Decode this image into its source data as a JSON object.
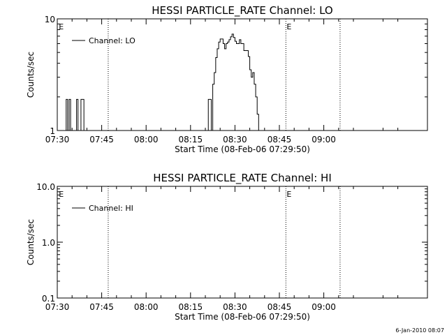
{
  "footer": {
    "timestamp": "6-Jan-2010 08:07"
  },
  "chart_data": [
    {
      "type": "line",
      "title": "HESSI PARTICLE_RATE Channel: LO",
      "xlabel": "Start Time (08-Feb-06 07:29:50)",
      "ylabel": "Counts/sec",
      "x_unit": "minutes after 07:30",
      "xlim": [
        0,
        125
      ],
      "x_ticks": [
        {
          "v": 0,
          "label": "07:30"
        },
        {
          "v": 15,
          "label": "07:45"
        },
        {
          "v": 30,
          "label": "08:00"
        },
        {
          "v": 45,
          "label": "08:15"
        },
        {
          "v": 60,
          "label": "08:30"
        },
        {
          "v": 75,
          "label": "08:45"
        },
        {
          "v": 90,
          "label": "09:00"
        }
      ],
      "y_scale": "log",
      "ylim": [
        1,
        10
      ],
      "y_ticks": [
        {
          "v": 1,
          "label": "1"
        },
        {
          "v": 10,
          "label": "10"
        }
      ],
      "legend": {
        "position": "top-left",
        "label": "Channel: LO"
      },
      "markers": [
        {
          "x": 0.3,
          "label": "E",
          "line": false
        },
        {
          "x": 17.2,
          "label": "",
          "line": true
        },
        {
          "x": 77.2,
          "label": "E",
          "line": true
        },
        {
          "x": 95.5,
          "label": "",
          "line": true
        }
      ],
      "series": [
        {
          "x": [
            2.5,
            3.0,
            3.5,
            4.0,
            4.5,
            5.0,
            5.5,
            6.0,
            6.5,
            7.0,
            7.5,
            8.0,
            8.5,
            9.0,
            9.5,
            10.0,
            50.0,
            50.5,
            51.0,
            51.5,
            52.0,
            52.5,
            53.0,
            53.5,
            54.0,
            54.5,
            55.0,
            55.5,
            56.0,
            56.5,
            57.0,
            57.5,
            58.0,
            58.5,
            59.0,
            59.5,
            60.0,
            60.5,
            61.0,
            61.5,
            62.0,
            62.5,
            63.0,
            63.5,
            64.0,
            64.5,
            65.0,
            65.5,
            66.0,
            66.5,
            67.0,
            67.5,
            68.0,
            68.5
          ],
          "y": [
            1,
            1.9,
            1,
            1.9,
            1,
            1,
            1,
            1,
            1.9,
            1,
            1,
            1.9,
            1.9,
            1,
            1,
            1,
            1,
            1,
            1.9,
            1.9,
            1,
            2.6,
            3.3,
            4.5,
            5.4,
            6.2,
            6.6,
            6.6,
            6.0,
            5.4,
            6.0,
            6.2,
            6.5,
            6.9,
            7.3,
            6.8,
            6.3,
            6.0,
            6.0,
            6.5,
            6.0,
            6.0,
            5.2,
            5.2,
            5.2,
            4.6,
            3.5,
            3.0,
            3.3,
            2.6,
            2.0,
            1.4,
            1,
            1
          ]
        }
      ]
    },
    {
      "type": "line",
      "title": "HESSI PARTICLE_RATE Channel: HI",
      "xlabel": "Start Time (08-Feb-06 07:29:50)",
      "ylabel": "Counts/sec",
      "x_unit": "minutes after 07:30",
      "xlim": [
        0,
        125
      ],
      "x_ticks": [
        {
          "v": 0,
          "label": "07:30"
        },
        {
          "v": 15,
          "label": "07:45"
        },
        {
          "v": 30,
          "label": "08:00"
        },
        {
          "v": 45,
          "label": "08:15"
        },
        {
          "v": 60,
          "label": "08:30"
        },
        {
          "v": 75,
          "label": "08:45"
        },
        {
          "v": 90,
          "label": "09:00"
        }
      ],
      "y_scale": "log",
      "ylim": [
        0.1,
        10
      ],
      "y_ticks": [
        {
          "v": 0.1,
          "label": "0.1"
        },
        {
          "v": 1,
          "label": "1.0"
        },
        {
          "v": 10,
          "label": "10.0"
        }
      ],
      "legend": {
        "position": "top-left",
        "label": "Channel: HI"
      },
      "markers": [
        {
          "x": 0.3,
          "label": "E",
          "line": false
        },
        {
          "x": 17.2,
          "label": "",
          "line": true
        },
        {
          "x": 77.2,
          "label": "E",
          "line": true
        },
        {
          "x": 95.5,
          "label": "",
          "line": true
        }
      ],
      "series": [
        {
          "x": [],
          "y": []
        }
      ]
    }
  ]
}
